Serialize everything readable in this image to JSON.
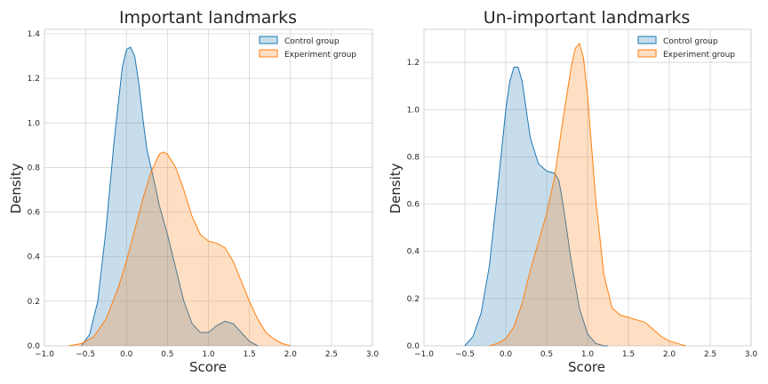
{
  "chart_data": [
    {
      "type": "area",
      "title": "Important landmarks",
      "xlabel": "Score",
      "ylabel": "Density",
      "xlim": [
        -1.0,
        3.0
      ],
      "ylim": [
        0,
        1.42
      ],
      "xticks": [
        "−1.0",
        "−0.5",
        "0.0",
        "0.5",
        "1.0",
        "1.5",
        "2.0",
        "2.5",
        "3.0"
      ],
      "xtick_values": [
        -1.0,
        -0.5,
        0.0,
        0.5,
        1.0,
        1.5,
        2.0,
        2.5,
        3.0
      ],
      "yticks": [
        "0.0",
        "0.2",
        "0.4",
        "0.6",
        "0.8",
        "1.0",
        "1.2",
        "1.4"
      ],
      "ytick_values": [
        0.0,
        0.2,
        0.4,
        0.6,
        0.8,
        1.0,
        1.2,
        1.4
      ],
      "grid": true,
      "legend_position": "top-right",
      "series": [
        {
          "name": "Control group",
          "color": "#1f77b4",
          "x": [
            -0.55,
            -0.45,
            -0.35,
            -0.25,
            -0.15,
            -0.05,
            0.0,
            0.05,
            0.1,
            0.15,
            0.2,
            0.25,
            0.3,
            0.35,
            0.4,
            0.5,
            0.6,
            0.7,
            0.8,
            0.9,
            1.0,
            1.1,
            1.2,
            1.3,
            1.4,
            1.5,
            1.55,
            1.6
          ],
          "y": [
            0.0,
            0.05,
            0.2,
            0.52,
            0.92,
            1.25,
            1.33,
            1.34,
            1.3,
            1.18,
            1.02,
            0.88,
            0.8,
            0.72,
            0.63,
            0.5,
            0.35,
            0.2,
            0.1,
            0.06,
            0.06,
            0.09,
            0.11,
            0.1,
            0.06,
            0.02,
            0.01,
            0.0
          ]
        },
        {
          "name": "Experiment group",
          "color": "#ff7f0e",
          "x": [
            -0.7,
            -0.55,
            -0.4,
            -0.25,
            -0.1,
            0.0,
            0.1,
            0.2,
            0.3,
            0.4,
            0.45,
            0.5,
            0.6,
            0.7,
            0.8,
            0.9,
            1.0,
            1.1,
            1.2,
            1.3,
            1.4,
            1.5,
            1.6,
            1.7,
            1.8,
            1.9,
            2.0
          ],
          "y": [
            0.0,
            0.01,
            0.04,
            0.12,
            0.26,
            0.38,
            0.52,
            0.66,
            0.78,
            0.86,
            0.87,
            0.86,
            0.8,
            0.7,
            0.58,
            0.5,
            0.47,
            0.46,
            0.44,
            0.38,
            0.29,
            0.2,
            0.12,
            0.06,
            0.03,
            0.01,
            0.0
          ]
        }
      ]
    },
    {
      "type": "area",
      "title": "Un-important landmarks",
      "xlabel": "Score",
      "ylabel": "Density",
      "xlim": [
        -1.0,
        3.0
      ],
      "ylim": [
        0,
        1.34
      ],
      "xticks": [
        "−1.0",
        "−0.5",
        "0.0",
        "0.5",
        "1.0",
        "1.5",
        "2.0",
        "2.5",
        "3.0"
      ],
      "xtick_values": [
        -1.0,
        -0.5,
        0.0,
        0.5,
        1.0,
        1.5,
        2.0,
        2.5,
        3.0
      ],
      "yticks": [
        "0.0",
        "0.2",
        "0.4",
        "0.6",
        "0.8",
        "1.0",
        "1.2"
      ],
      "ytick_values": [
        0.0,
        0.2,
        0.4,
        0.6,
        0.8,
        1.0,
        1.2
      ],
      "grid": true,
      "legend_position": "top-right",
      "series": [
        {
          "name": "Control group",
          "color": "#1f77b4",
          "x": [
            -0.5,
            -0.4,
            -0.3,
            -0.2,
            -0.1,
            0.0,
            0.05,
            0.1,
            0.15,
            0.2,
            0.25,
            0.3,
            0.4,
            0.5,
            0.6,
            0.65,
            0.7,
            0.8,
            0.9,
            1.0,
            1.1,
            1.2,
            1.25
          ],
          "y": [
            0.0,
            0.04,
            0.14,
            0.34,
            0.66,
            1.0,
            1.12,
            1.18,
            1.18,
            1.12,
            1.0,
            0.88,
            0.77,
            0.74,
            0.73,
            0.7,
            0.6,
            0.36,
            0.16,
            0.05,
            0.01,
            0.0,
            0.0
          ]
        },
        {
          "name": "Experiment group",
          "color": "#ff7f0e",
          "x": [
            -0.2,
            -0.1,
            0.0,
            0.1,
            0.2,
            0.3,
            0.4,
            0.5,
            0.6,
            0.7,
            0.8,
            0.85,
            0.9,
            0.95,
            1.0,
            1.1,
            1.2,
            1.3,
            1.4,
            1.5,
            1.6,
            1.7,
            1.8,
            1.9,
            2.0,
            2.1,
            2.2
          ],
          "y": [
            0.0,
            0.01,
            0.03,
            0.08,
            0.18,
            0.32,
            0.44,
            0.56,
            0.72,
            0.96,
            1.18,
            1.26,
            1.28,
            1.22,
            1.06,
            0.62,
            0.3,
            0.16,
            0.13,
            0.12,
            0.11,
            0.1,
            0.07,
            0.04,
            0.02,
            0.01,
            0.0
          ]
        }
      ]
    }
  ]
}
